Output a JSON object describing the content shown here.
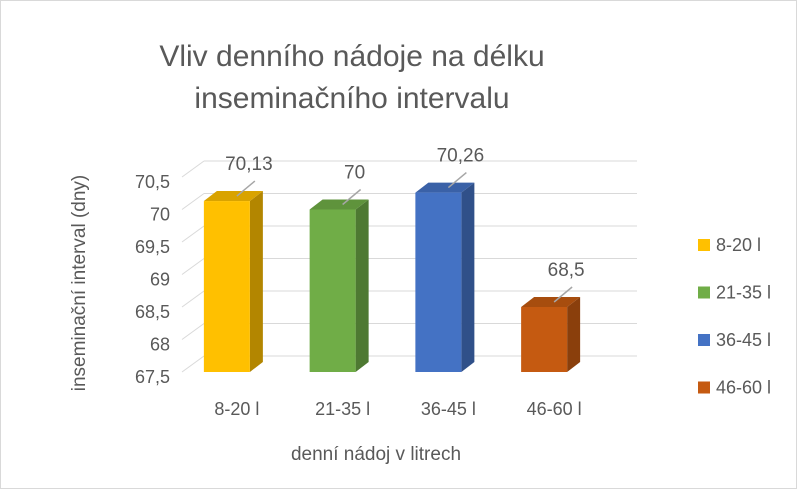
{
  "chart_data": {
    "type": "bar3d",
    "title": "Vliv denního nádoje na délku inseminačního intervalu",
    "x_label": "denní nádoj v litrech",
    "y_label": "inseminační interval (dny)",
    "categories": [
      "8-20 l",
      "21-35 l",
      "36-45 l",
      "46-60 l"
    ],
    "values": [
      70.13,
      70,
      70.26,
      68.5
    ],
    "value_labels": [
      "70,13",
      "70",
      "70,26",
      "68,5"
    ],
    "colors": [
      "#FFC000",
      "#70AD47",
      "#4472C4",
      "#C55A11"
    ],
    "ylim": [
      67.5,
      70.5
    ],
    "yticks": [
      {
        "value": 67.5,
        "label": "67,5"
      },
      68,
      {
        "value": 68.5,
        "label": "68,5"
      },
      69,
      {
        "value": 69.5,
        "label": "69,5"
      },
      70,
      {
        "value": 70.5,
        "label": "70,5"
      }
    ],
    "grid": true,
    "legend": "right"
  }
}
